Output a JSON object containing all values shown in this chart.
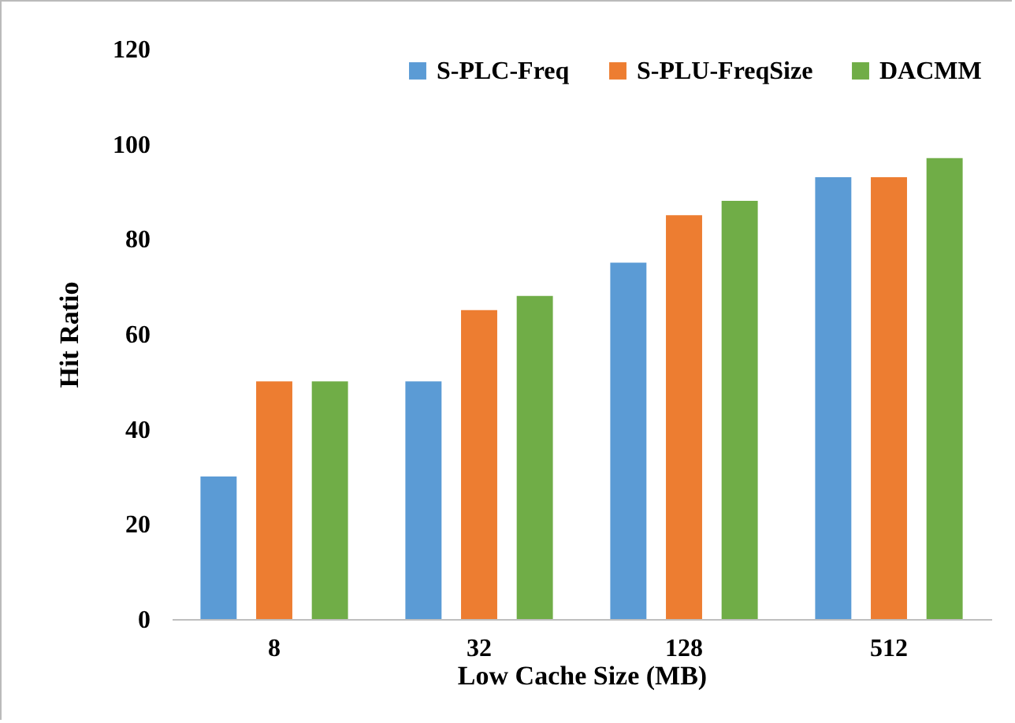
{
  "chart_data": {
    "type": "bar",
    "xlabel": "Low Cache Size (MB)",
    "ylabel": "Hit Ratio",
    "categories": [
      "8",
      "32",
      "128",
      "512"
    ],
    "series": [
      {
        "name": "S-PLC-Freq",
        "color": "#5b9bd5",
        "values": [
          30,
          50,
          75,
          93
        ]
      },
      {
        "name": "S-PLU-FreqSize",
        "color": "#ed7d31",
        "values": [
          50,
          65,
          85,
          93
        ]
      },
      {
        "name": "DACMM",
        "color": "#70ad47",
        "values": [
          50,
          68,
          88,
          97
        ]
      }
    ],
    "ylim": [
      0,
      120
    ],
    "yticks": [
      0,
      20,
      40,
      60,
      80,
      100,
      120
    ],
    "grid": false,
    "legend": "top right"
  }
}
